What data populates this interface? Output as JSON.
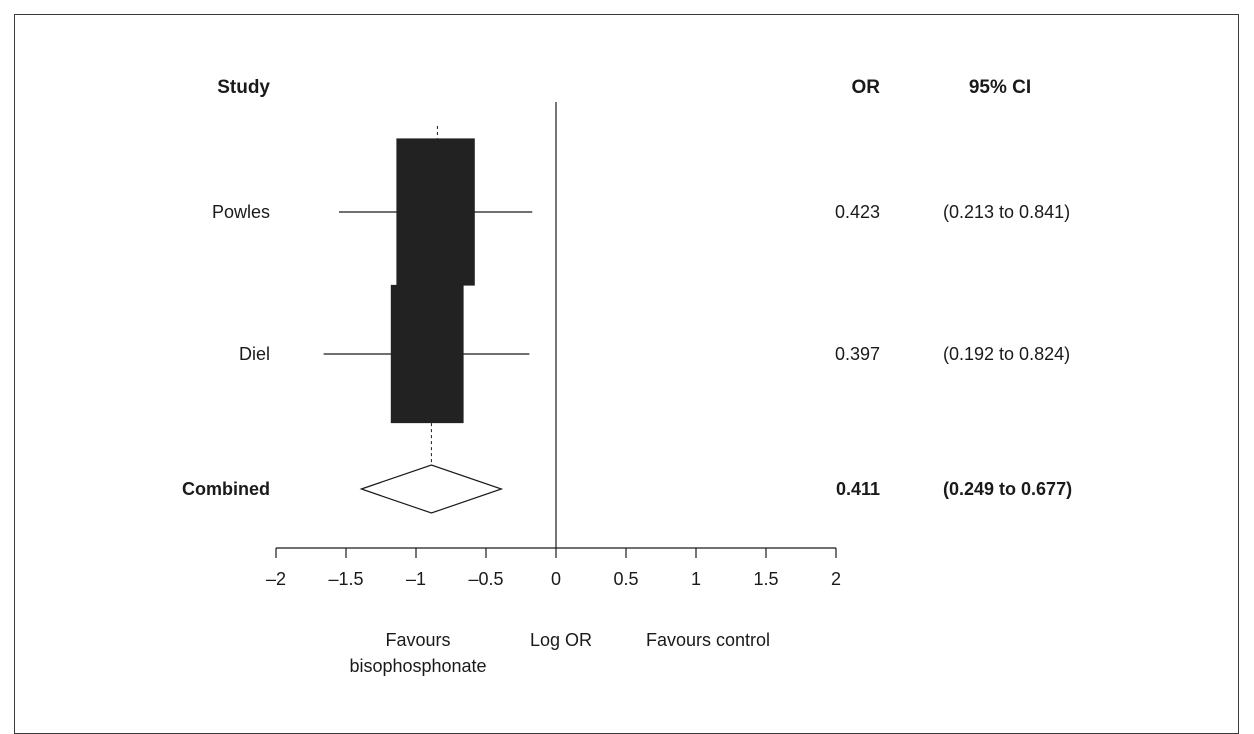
{
  "chart_data": {
    "type": "forest",
    "headers": {
      "study": "Study",
      "or": "OR",
      "ci": "95% CI"
    },
    "rows": [
      {
        "study": "Powles",
        "or_label": "0.423",
        "ci_label": "(0.213 to 0.841)",
        "log_or": -0.86,
        "ci_low": -1.55,
        "ci_high": -0.17,
        "box_half": 0.28,
        "box_height": 0.33,
        "bold": false,
        "kind": "study"
      },
      {
        "study": "Diel",
        "or_label": "0.397",
        "ci_label": "(0.192 to 0.824)",
        "log_or": -0.92,
        "ci_low": -1.66,
        "ci_high": -0.19,
        "box_half": 0.26,
        "box_height": 0.31,
        "bold": false,
        "kind": "study"
      },
      {
        "study": "Combined",
        "or_label": "0.411",
        "ci_label": "(0.249 to 0.677)",
        "log_or": -0.89,
        "ci_low": -1.39,
        "ci_high": -0.39,
        "bold": true,
        "kind": "summary"
      }
    ],
    "xlim": [
      -2,
      2
    ],
    "xticks": [
      -2,
      -1.5,
      -1,
      -0.5,
      0,
      0.5,
      1,
      1.5,
      2
    ],
    "xtick_labels": [
      "–2",
      "–1.5",
      "–1",
      "–0.5",
      "0",
      "0.5",
      "1",
      "1.5",
      "2"
    ],
    "xlabel": "Log OR",
    "left_note": [
      "Favours",
      "bisophosphonate"
    ],
    "right_note": "Favours control",
    "reference_line": 0
  }
}
